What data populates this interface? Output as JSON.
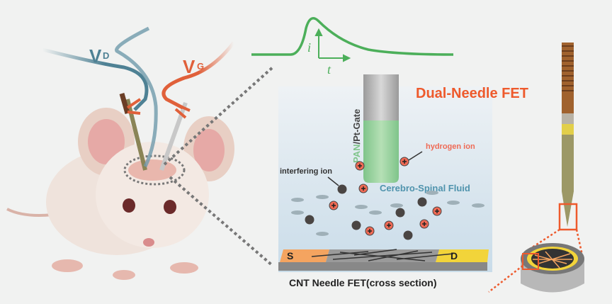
{
  "labels": {
    "vd_main": "V",
    "vd_sub": "D",
    "vg_main": "V",
    "vg_sub": "G",
    "current_axis": "i",
    "time_axis": "t",
    "title": "Dual-Needle FET",
    "gate_pan": "PAN",
    "gate_rest": "/Pt-Gate",
    "hydrogen_ion": "hydrogen ion",
    "interfering_ion": "interfering ion",
    "csf": "Cerebro-Spinal Fluid",
    "source": "S",
    "drain": "D",
    "caption": "CNT Needle FET(cross section)"
  },
  "colors": {
    "background": "#f1f2f1",
    "drain_wire": "#4e8194",
    "gate_wire": "#e0603a",
    "signal": "#4caf5a",
    "title": "#ee5a2c",
    "hydrogen_ion": "#ef6a55",
    "interfering_ion": "#4a4543",
    "csf_text": "#4f93ad",
    "source_pad": "#f4a460",
    "drain_pad": "#f2d43a"
  }
}
